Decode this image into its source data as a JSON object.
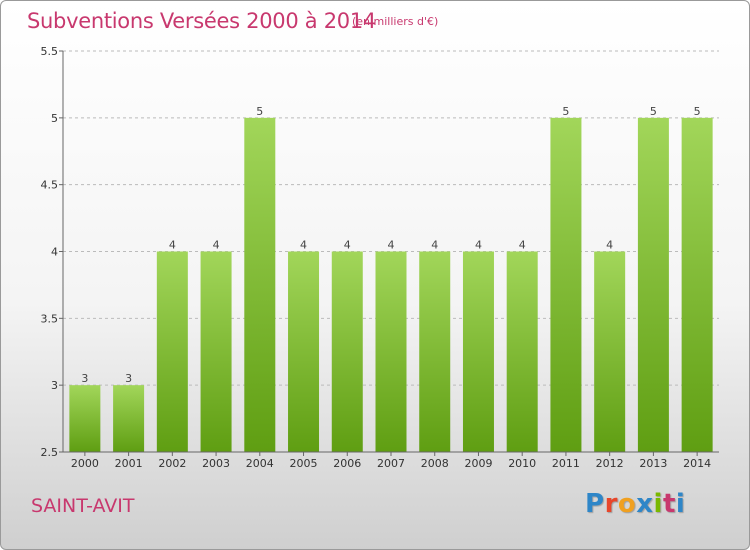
{
  "header": {
    "title": "Subventions Versées 2000 à 2014",
    "subtitle": "(en milliers d'€)"
  },
  "footer": {
    "commune": "SAINT-AVIT",
    "logo_text": "Proxiti",
    "logo_colors": [
      "#2e86c8",
      "#e8462a",
      "#f0a020",
      "#2e86c8",
      "#7ab800",
      "#c8386e",
      "#2e86c8"
    ]
  },
  "colors": {
    "bar_top": "#a2d65a",
    "bar_bottom": "#5f9e12",
    "grid": "#bbbbbb",
    "axis": "#666666"
  },
  "chart_data": {
    "type": "bar",
    "categories": [
      "2000",
      "2001",
      "2002",
      "2003",
      "2004",
      "2005",
      "2006",
      "2007",
      "2008",
      "2009",
      "2010",
      "2011",
      "2012",
      "2013",
      "2014"
    ],
    "values": [
      3,
      3,
      4,
      4,
      5,
      4,
      4,
      4,
      4,
      4,
      4,
      5,
      4,
      5,
      5
    ],
    "ylim": [
      2.5,
      5.5
    ],
    "yticks": [
      "2.5",
      "3",
      "3.5",
      "4",
      "4.5",
      "5",
      "5.5"
    ],
    "grid": true
  }
}
